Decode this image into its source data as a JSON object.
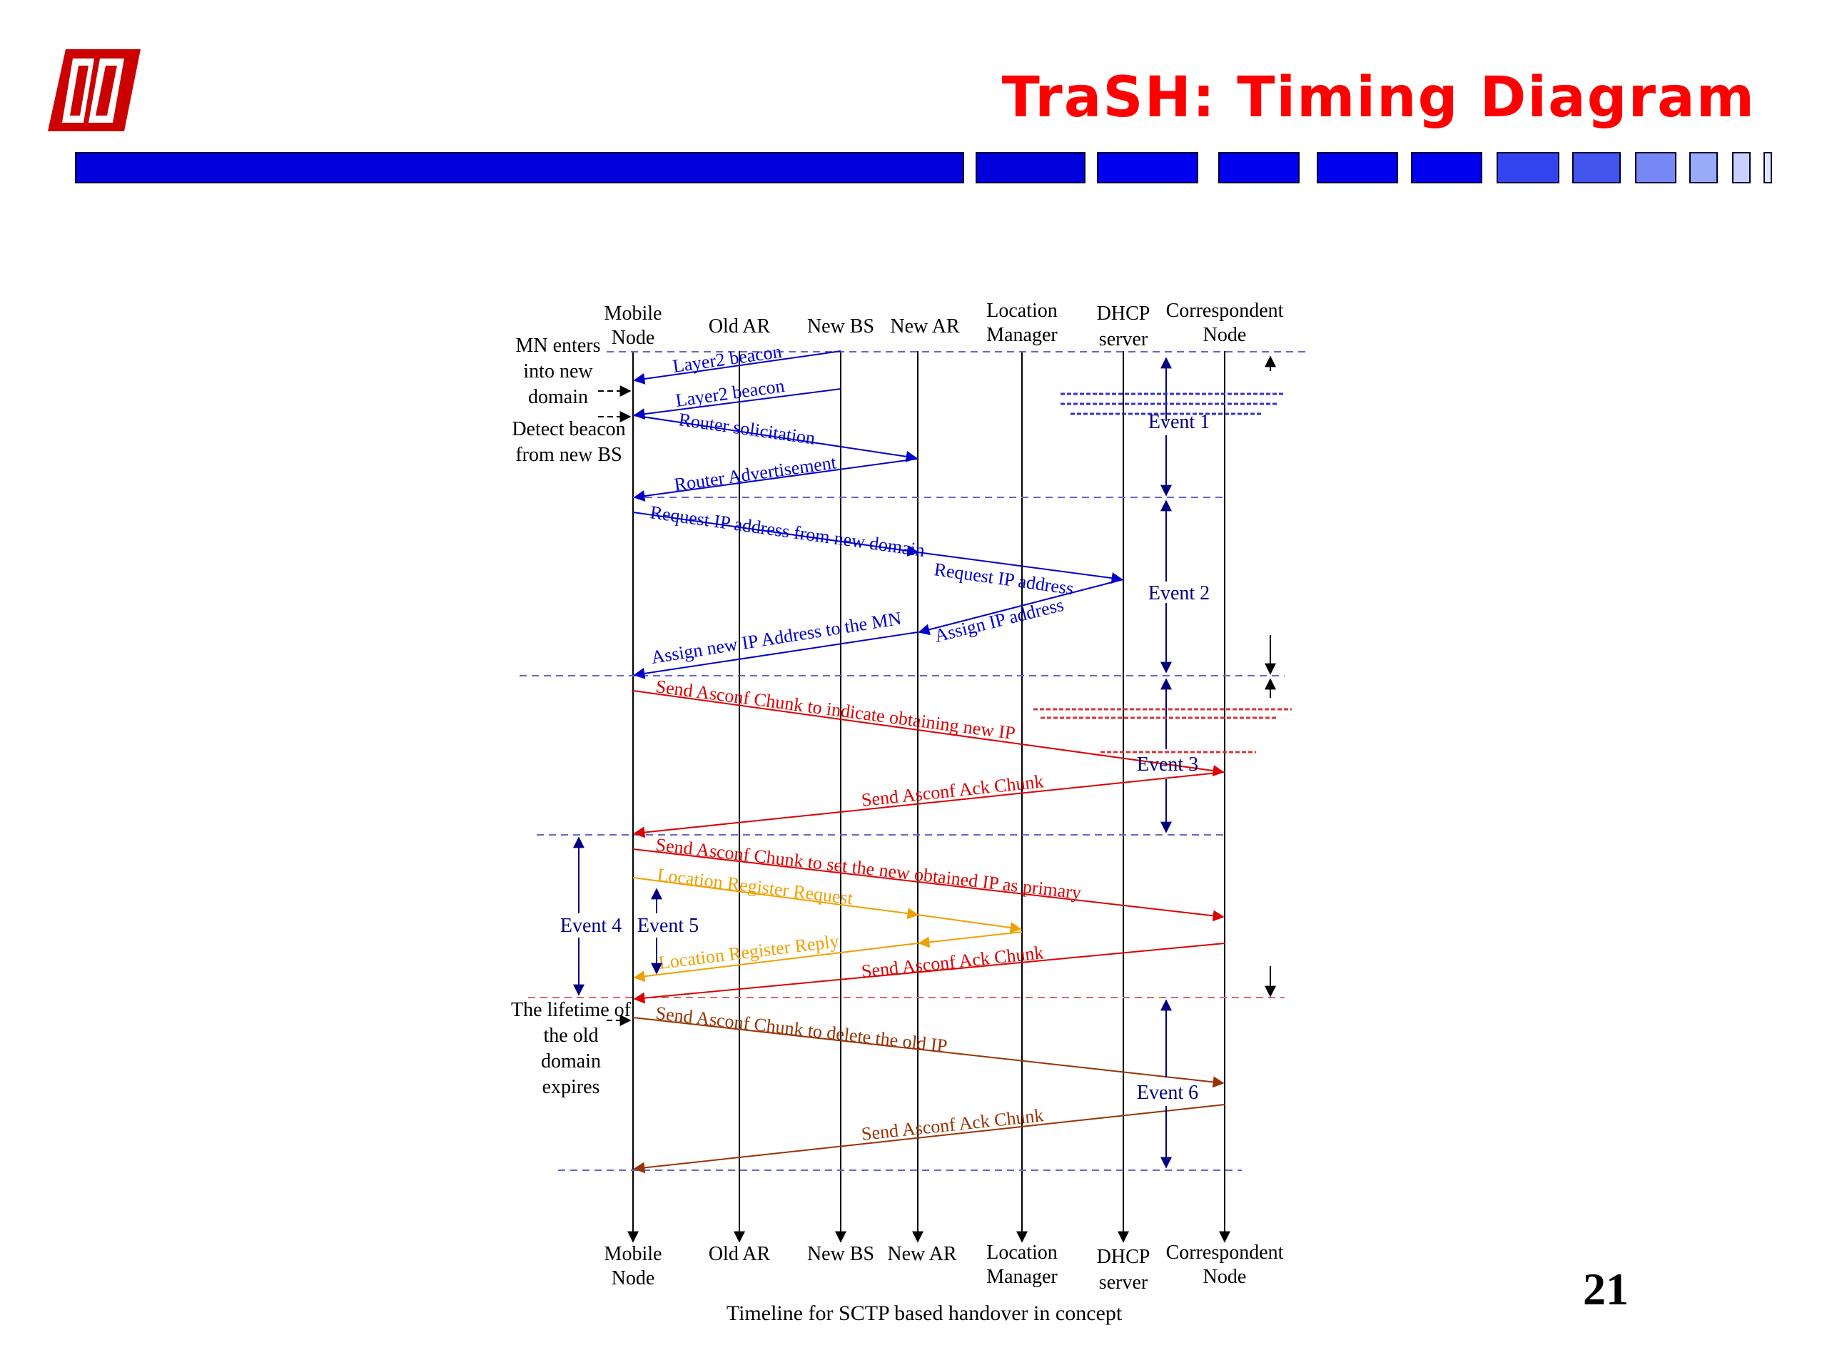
{
  "header": {
    "title": "TraSH: Timing Diagram",
    "logo": "university-logo",
    "bar_color": "#0000dd",
    "page_number": "21"
  },
  "diagram": {
    "caption": "Timeline for SCTP based handover in concept",
    "entities": [
      {
        "id": "mn",
        "line1": "Mobile",
        "line2": "Node"
      },
      {
        "id": "oldar",
        "line1": "Old AR",
        "line2": ""
      },
      {
        "id": "newbs",
        "line1": "New BS",
        "line2": ""
      },
      {
        "id": "newar",
        "line1": "New AR",
        "line2": ""
      },
      {
        "id": "lm",
        "line1": "Location",
        "line2": "Manager"
      },
      {
        "id": "dhcp",
        "line1": "DHCP",
        "line2": "server"
      },
      {
        "id": "cn",
        "line1": "Correspondent",
        "line2": "Node"
      }
    ],
    "messages": [
      {
        "label": "Layer2 beacon",
        "color": "#0000cc"
      },
      {
        "label": "Layer2 beacon",
        "color": "#0000cc"
      },
      {
        "label": "Router solicitation",
        "color": "#0000cc"
      },
      {
        "label": "Router Advertisement",
        "color": "#0000cc"
      },
      {
        "label": "Request IP address from new domain",
        "color": "#0000cc"
      },
      {
        "label": "Request IP address",
        "color": "#0000cc"
      },
      {
        "label": "Assign IP address",
        "color": "#0000cc"
      },
      {
        "label": "Assign new IP Address to the MN",
        "color": "#0000cc"
      },
      {
        "label": "Send Asconf Chunk to indicate obtaining new IP",
        "color": "#dd0000"
      },
      {
        "label": "Send Asconf Ack Chunk",
        "color": "#dd0000"
      },
      {
        "label": "Send Asconf Chunk to set the new obtained IP as primary",
        "color": "#dd0000"
      },
      {
        "label": "Location Register Request",
        "color": "#f0a000"
      },
      {
        "label": "Location Register Reply",
        "color": "#f0a000"
      },
      {
        "label": "Send Asconf Ack Chunk",
        "color": "#dd0000"
      },
      {
        "label": "Send Asconf Chunk to delete the old IP",
        "color": "#993300"
      },
      {
        "label": "Send Asconf Ack Chunk",
        "color": "#993300"
      }
    ],
    "events": [
      {
        "label": "Event 1"
      },
      {
        "label": "Event 2"
      },
      {
        "label": "Event 3"
      },
      {
        "label": "Event 4"
      },
      {
        "label": "Event 5"
      },
      {
        "label": "Event 6"
      }
    ],
    "notes": {
      "mn_enters": [
        "MN enters",
        "into new",
        "domain"
      ],
      "detect_beacon": [
        "Detect beacon",
        "from new BS"
      ],
      "lifetime": [
        "The lifetime of",
        "the old",
        "domain",
        "expires"
      ]
    }
  }
}
